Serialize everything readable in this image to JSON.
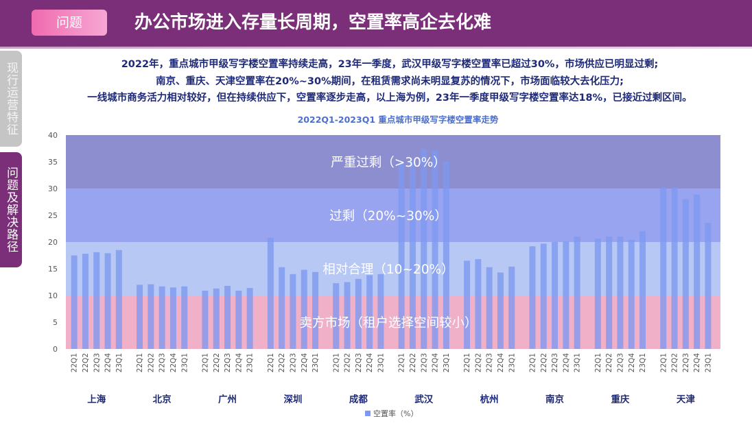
{
  "header": {
    "tag": "问题",
    "title": "办公市场进入存量长周期，空置率高企去化难"
  },
  "sidebar": {
    "tabs": [
      {
        "label": "现行运营特征",
        "active": false
      },
      {
        "label": "问题及解决路径",
        "active": true
      }
    ]
  },
  "description": [
    "2022年，重点城市甲级写字楼空置率持续走高，23年一季度，武汉甲级写字楼空置率已超过30%，市场供应已明显过剩;",
    "南京、重庆、天津空置率在20%~30%期间，在租赁需求尚未明显复苏的情况下，市场面临较大去化压力;",
    "一线城市商务活力相对较好，但在持续供应下，空置率逐步走高，以上海为例，23年一季度甲级写字楼空置率达18%，已接近过剩区间。"
  ],
  "colors": {
    "brand": "#7a2f78",
    "tag": "#f06ab0",
    "bar": "#7d98f0",
    "text_dark": "#1e2a78"
  },
  "chart_data": {
    "type": "bar",
    "title": "2022Q1-2023Q1 重点城市甲级写字楼空置率走势",
    "ylim": [
      0,
      40
    ],
    "yticks": [
      0,
      5,
      10,
      15,
      20,
      25,
      30,
      35,
      40
    ],
    "quarters": [
      "22Q1",
      "22Q2",
      "22Q3",
      "22Q4",
      "23Q1"
    ],
    "groups": [
      {
        "city": "上海",
        "values": [
          17.5,
          17.8,
          18.1,
          17.9,
          18.5
        ]
      },
      {
        "city": "北京",
        "values": [
          12.0,
          12.1,
          11.7,
          11.5,
          11.7
        ]
      },
      {
        "city": "广州",
        "values": [
          10.9,
          11.3,
          11.8,
          10.9,
          11.4
        ]
      },
      {
        "city": "深圳",
        "values": [
          20.8,
          15.3,
          14.0,
          14.8,
          14.4
        ]
      },
      {
        "city": "成都",
        "values": [
          12.3,
          12.5,
          13.1,
          13.8,
          14.0
        ]
      },
      {
        "city": "武汉",
        "values": [
          34.8,
          35.3,
          37.4,
          37.1,
          35.0
        ]
      },
      {
        "city": "杭州",
        "values": [
          16.5,
          16.8,
          15.3,
          14.3,
          15.4
        ]
      },
      {
        "city": "南京",
        "values": [
          19.2,
          19.7,
          20.0,
          20.1,
          21.0
        ]
      },
      {
        "city": "重庆",
        "values": [
          20.6,
          21.0,
          21.0,
          20.4,
          22.0
        ]
      },
      {
        "city": "天津",
        "values": [
          30.2,
          30.2,
          28.0,
          28.9,
          23.6
        ]
      }
    ],
    "bands": [
      {
        "label": "卖方市场（租户选择空间较小）",
        "range": [
          0,
          10
        ],
        "color": "#f0b0c8"
      },
      {
        "label": "相对合理（10~20%）",
        "range": [
          10,
          20
        ],
        "color": "#b8c8f4"
      },
      {
        "label": "过剩（20%~30%）",
        "range": [
          20,
          30
        ],
        "color": "#98a4ef"
      },
      {
        "label": "严重过剩（>30%）",
        "range": [
          30,
          40
        ],
        "color": "#8c8ed0"
      }
    ],
    "legend": {
      "label": "空置率（%）",
      "position": "bottom"
    }
  }
}
